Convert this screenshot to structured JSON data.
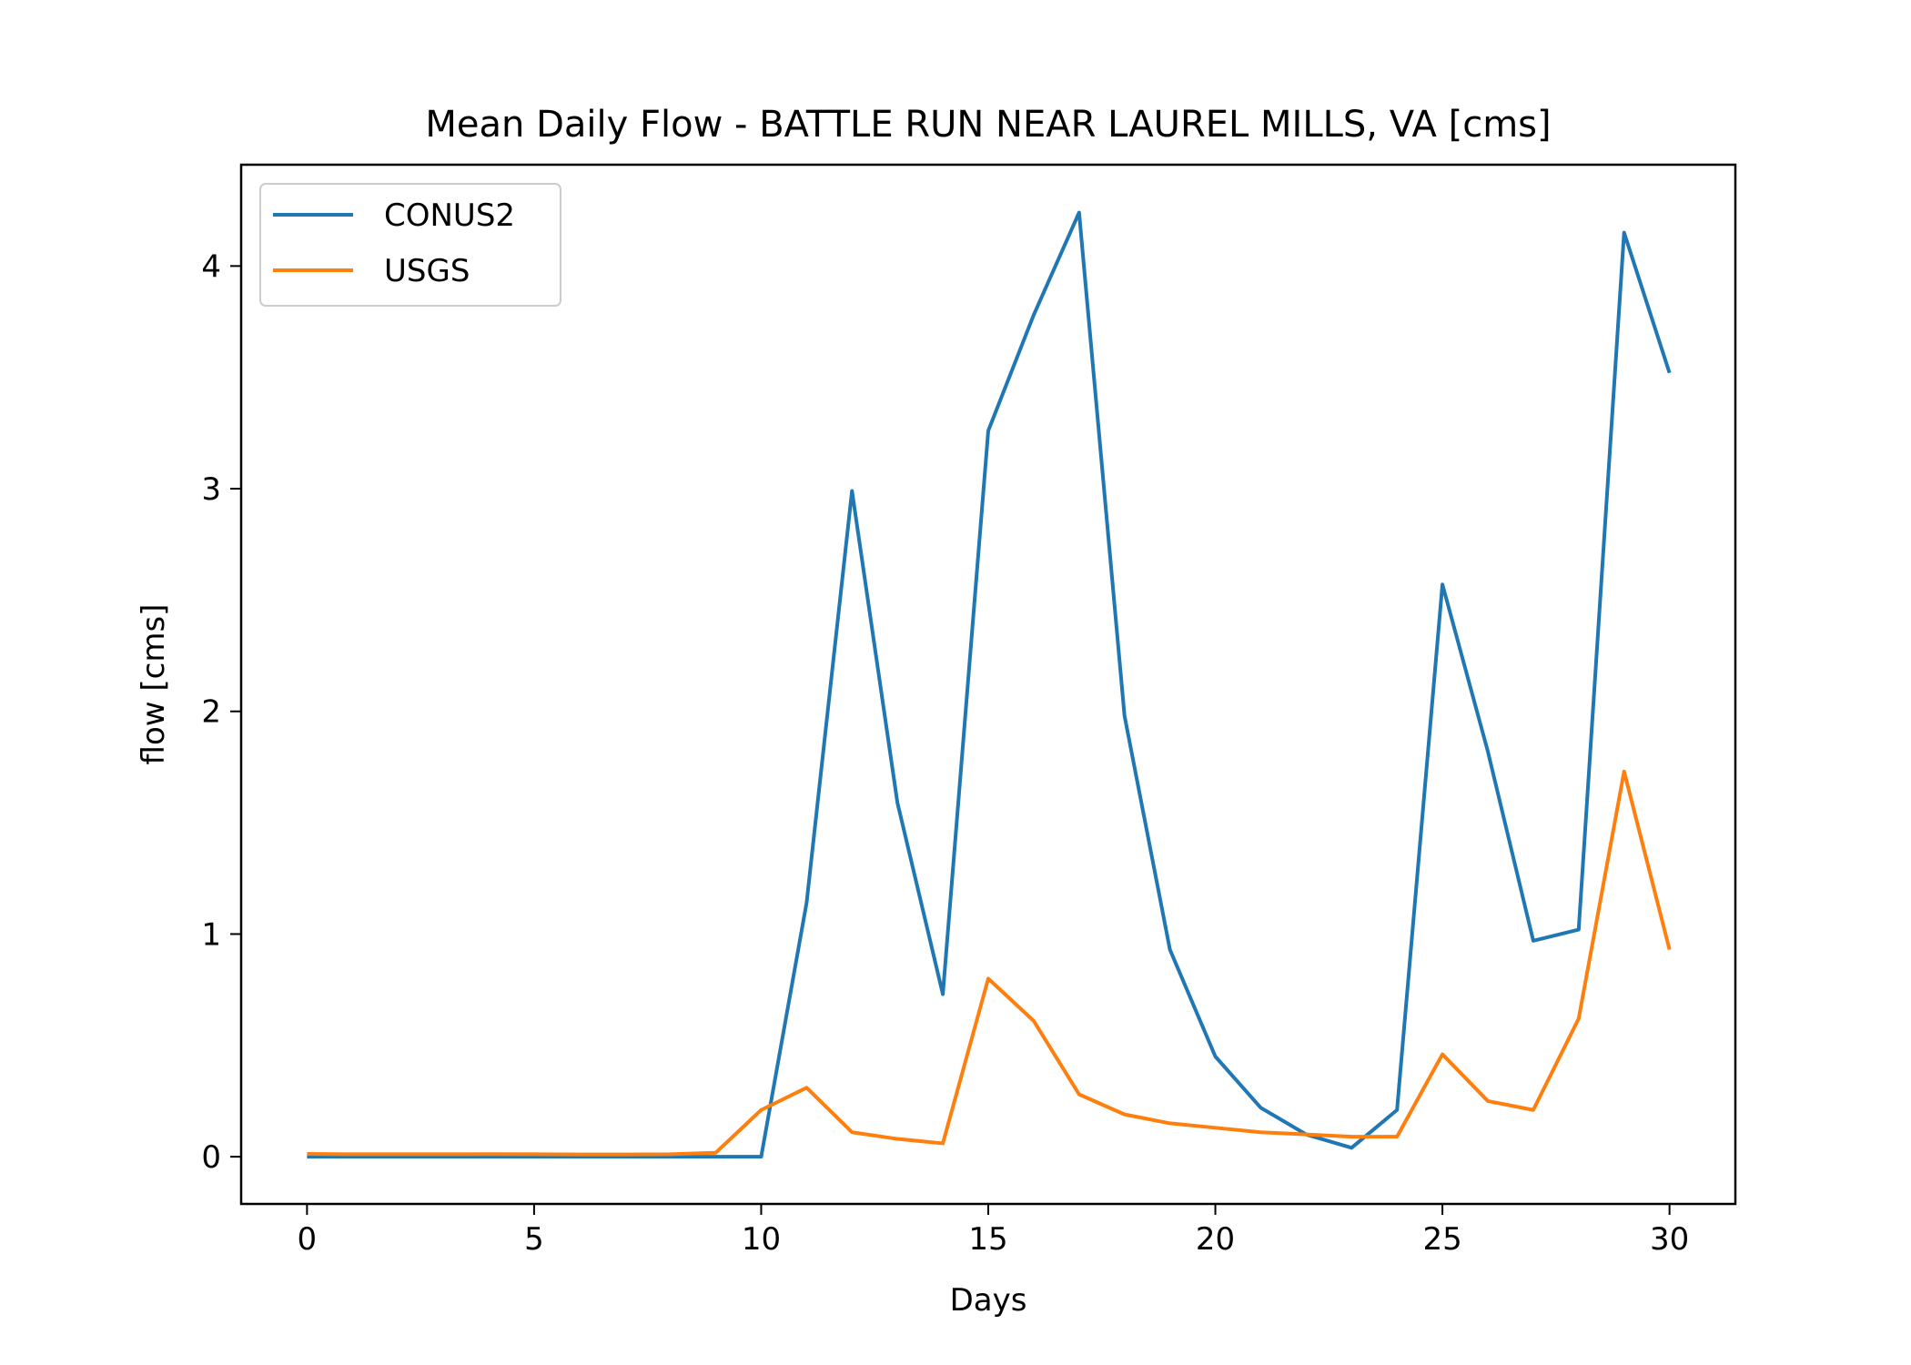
{
  "chart_data": {
    "type": "line",
    "title": "Mean Daily Flow - BATTLE RUN NEAR LAUREL MILLS, VA [cms]",
    "xlabel": "Days",
    "ylabel": "flow [cms]",
    "xlim": [
      -1.45,
      31.45
    ],
    "ylim": [
      -0.212,
      4.455
    ],
    "xticks": [
      0,
      5,
      10,
      15,
      20,
      25,
      30
    ],
    "yticks": [
      0,
      1,
      2,
      3,
      4
    ],
    "grid": false,
    "legend": "upper-left",
    "x": [
      0,
      1,
      2,
      3,
      4,
      5,
      6,
      7,
      8,
      9,
      10,
      11,
      12,
      13,
      14,
      15,
      16,
      17,
      18,
      19,
      20,
      21,
      22,
      23,
      24,
      25,
      26,
      27,
      28,
      29,
      30
    ],
    "series": [
      {
        "name": "CONUS2",
        "color": "#1f77b4",
        "values": [
          0.0,
          0.0,
          0.0,
          0.0,
          0.0,
          0.0,
          0.0,
          0.0,
          0.0,
          0.0,
          0.0,
          1.14,
          2.99,
          1.59,
          0.73,
          3.26,
          3.78,
          4.24,
          1.98,
          0.93,
          0.45,
          0.22,
          0.1,
          0.04,
          0.21,
          2.57,
          1.82,
          0.97,
          1.02,
          4.15,
          3.52
        ]
      },
      {
        "name": "USGS",
        "color": "#ff7f0e",
        "values": [
          0.013,
          0.011,
          0.011,
          0.011,
          0.012,
          0.011,
          0.01,
          0.01,
          0.011,
          0.018,
          0.21,
          0.31,
          0.11,
          0.08,
          0.06,
          0.8,
          0.61,
          0.28,
          0.19,
          0.15,
          0.13,
          0.11,
          0.1,
          0.09,
          0.09,
          0.46,
          0.25,
          0.21,
          0.62,
          1.73,
          0.93
        ]
      }
    ]
  }
}
